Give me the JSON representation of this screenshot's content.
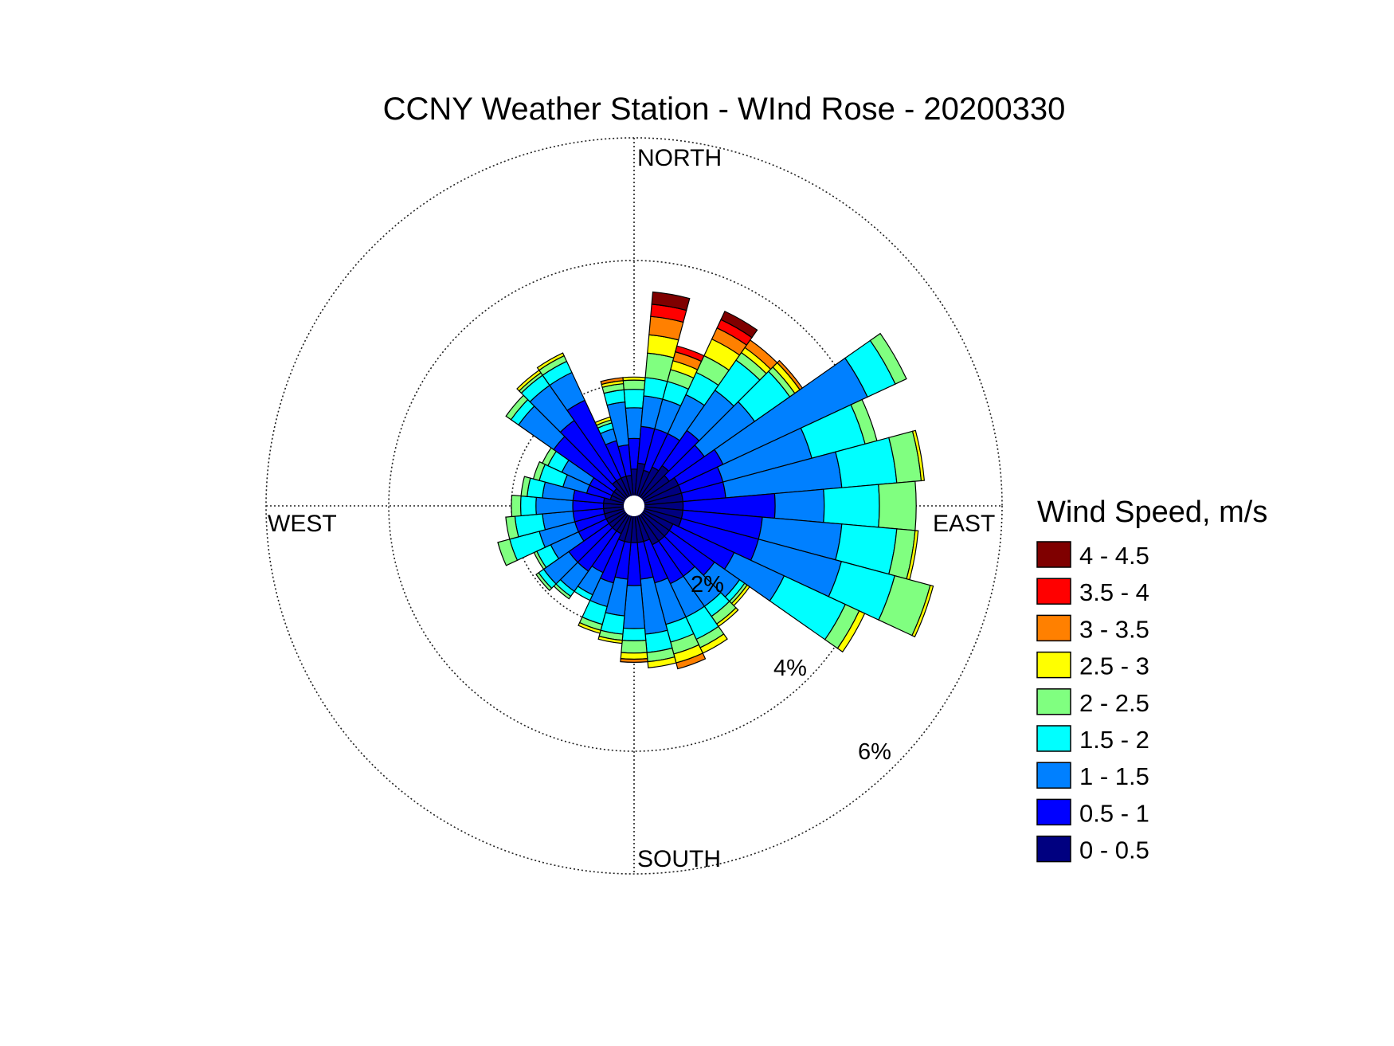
{
  "chart_data": {
    "type": "wind-rose",
    "title": "CCNY Weather Station - WInd Rose - 20200330",
    "directions": {
      "north": "NORTH",
      "east": "EAST",
      "south": "SOUTH",
      "west": "WEST"
    },
    "rings": [
      {
        "value": 2,
        "label": "2%"
      },
      {
        "value": 4,
        "label": "4%"
      },
      {
        "value": 6,
        "label": "6%"
      }
    ],
    "rmax": 6,
    "legend": {
      "title": "Wind Speed, m/s",
      "bins": [
        {
          "label": "4 - 4.5",
          "color": "#7f0000"
        },
        {
          "label": "3.5 - 4",
          "color": "#ff0000"
        },
        {
          "label": "3 - 3.5",
          "color": "#ff8000"
        },
        {
          "label": "2.5 - 3",
          "color": "#ffff00"
        },
        {
          "label": "2 - 2.5",
          "color": "#80ff80"
        },
        {
          "label": "1.5 - 2",
          "color": "#00ffff"
        },
        {
          "label": "1 - 1.5",
          "color": "#0080ff"
        },
        {
          "label": "0.5 - 1",
          "color": "#0000ff"
        },
        {
          "label": "0 - 0.5",
          "color": "#000080"
        }
      ]
    },
    "bin_order_inner_to_outer": [
      "0 - 0.5",
      "0.5 - 1",
      "1 - 1.5",
      "1.5 - 2",
      "2 - 2.5",
      "2.5 - 3",
      "3 - 3.5",
      "3.5 - 4",
      "4 - 4.5"
    ],
    "sector_width_deg": 10,
    "sectors": [
      {
        "dir": 0,
        "cum": [
          0.6,
          1.1,
          1.6,
          1.9,
          2.05,
          2.1
        ]
      },
      {
        "dir": 10,
        "cum": [
          0.7,
          1.3,
          1.8,
          2.1,
          2.5,
          2.8,
          3.1,
          3.3,
          3.5
        ]
      },
      {
        "dir": 20,
        "cum": [
          0.6,
          1.3,
          1.8,
          2.1,
          2.3,
          2.45,
          2.6,
          2.7
        ]
      },
      {
        "dir": 30,
        "cum": [
          0.7,
          1.3,
          2.0,
          2.4,
          2.7,
          3.0,
          3.2,
          3.35,
          3.5
        ]
      },
      {
        "dir": 40,
        "cum": [
          0.8,
          1.5,
          2.3,
          2.9,
          3.05,
          3.15,
          3.3
        ]
      },
      {
        "dir": 50,
        "cum": [
          0.7,
          1.4,
          2.4,
          3.1,
          3.2,
          3.3,
          3.35
        ]
      },
      {
        "dir": 60,
        "cum": [
          0.8,
          1.6,
          4.2,
          4.7,
          4.9
        ]
      },
      {
        "dir": 70,
        "cum": [
          0.8,
          1.5,
          3.0,
          3.9,
          4.1
        ]
      },
      {
        "dir": 80,
        "cum": [
          0.8,
          1.5,
          3.4,
          4.3,
          4.7,
          4.75
        ]
      },
      {
        "dir": 90,
        "cum": [
          0.8,
          2.3,
          3.1,
          4.0,
          4.6
        ]
      },
      {
        "dir": 100,
        "cum": [
          0.8,
          2.1,
          3.4,
          4.3,
          4.6,
          4.65
        ]
      },
      {
        "dir": 110,
        "cum": [
          0.8,
          2.1,
          3.5,
          4.4,
          5.0,
          5.05
        ]
      },
      {
        "dir": 120,
        "cum": [
          0.7,
          1.8,
          2.7,
          3.8,
          4.05,
          4.15
        ]
      },
      {
        "dir": 130,
        "cum": [
          0.7,
          1.6,
          2.1,
          2.2,
          2.25,
          2.3
        ]
      },
      {
        "dir": 140,
        "cum": [
          0.7,
          1.4,
          2.0,
          2.2,
          2.35,
          2.4
        ]
      },
      {
        "dir": 150,
        "cum": [
          0.7,
          1.4,
          2.0,
          2.4,
          2.55,
          2.65
        ]
      },
      {
        "dir": 160,
        "cum": [
          0.6,
          1.3,
          2.0,
          2.3,
          2.5,
          2.65,
          2.75
        ]
      },
      {
        "dir": 170,
        "cum": [
          0.6,
          1.2,
          2.1,
          2.4,
          2.55,
          2.65
        ]
      },
      {
        "dir": 180,
        "cum": [
          0.6,
          1.3,
          2.0,
          2.2,
          2.4,
          2.5,
          2.55
        ]
      },
      {
        "dir": 190,
        "cum": [
          0.6,
          1.2,
          1.8,
          2.1,
          2.2,
          2.25
        ]
      },
      {
        "dir": 200,
        "cum": [
          0.6,
          1.3,
          1.7,
          2.0,
          2.1,
          2.15
        ]
      },
      {
        "dir": 210,
        "cum": [
          0.5,
          1.2,
          1.6,
          1.7
        ]
      },
      {
        "dir": 220,
        "cum": [
          0.5,
          1.3,
          1.7,
          1.8,
          1.85
        ]
      },
      {
        "dir": 230,
        "cum": [
          0.5,
          1.3,
          1.8,
          1.9,
          1.95
        ]
      },
      {
        "dir": 240,
        "cum": [
          0.5,
          1.0,
          1.5,
          1.75,
          1.8
        ]
      },
      {
        "dir": 250,
        "cum": [
          0.5,
          1.0,
          1.6,
          2.1,
          2.3
        ]
      },
      {
        "dir": 260,
        "cum": [
          0.5,
          1.0,
          1.5,
          1.95,
          2.1
        ]
      },
      {
        "dir": 270,
        "cum": [
          0.5,
          1.0,
          1.6,
          1.85,
          2.0
        ]
      },
      {
        "dir": 280,
        "cum": [
          0.5,
          1.0,
          1.5,
          1.75,
          1.85
        ]
      },
      {
        "dir": 290,
        "cum": [
          0.4,
          0.8,
          1.2,
          1.6,
          1.7
        ]
      },
      {
        "dir": 300,
        "cum": [
          0.4,
          0.8,
          1.3,
          1.55,
          1.65
        ]
      },
      {
        "dir": 310,
        "cum": [
          0.4,
          1.6,
          2.3,
          2.45,
          2.55
        ]
      },
      {
        "dir": 320,
        "cum": [
          0.5,
          1.7,
          2.4,
          2.6,
          2.65,
          2.7
        ]
      },
      {
        "dir": 330,
        "cum": [
          0.5,
          1.9,
          2.4,
          2.6,
          2.7,
          2.75
        ]
      },
      {
        "dir": 340,
        "cum": [
          0.5,
          1.1,
          1.3,
          1.4,
          1.45,
          1.5
        ]
      },
      {
        "dir": 350,
        "cum": [
          0.5,
          1.0,
          1.7,
          1.9,
          2.0,
          2.05,
          2.1
        ]
      }
    ]
  }
}
